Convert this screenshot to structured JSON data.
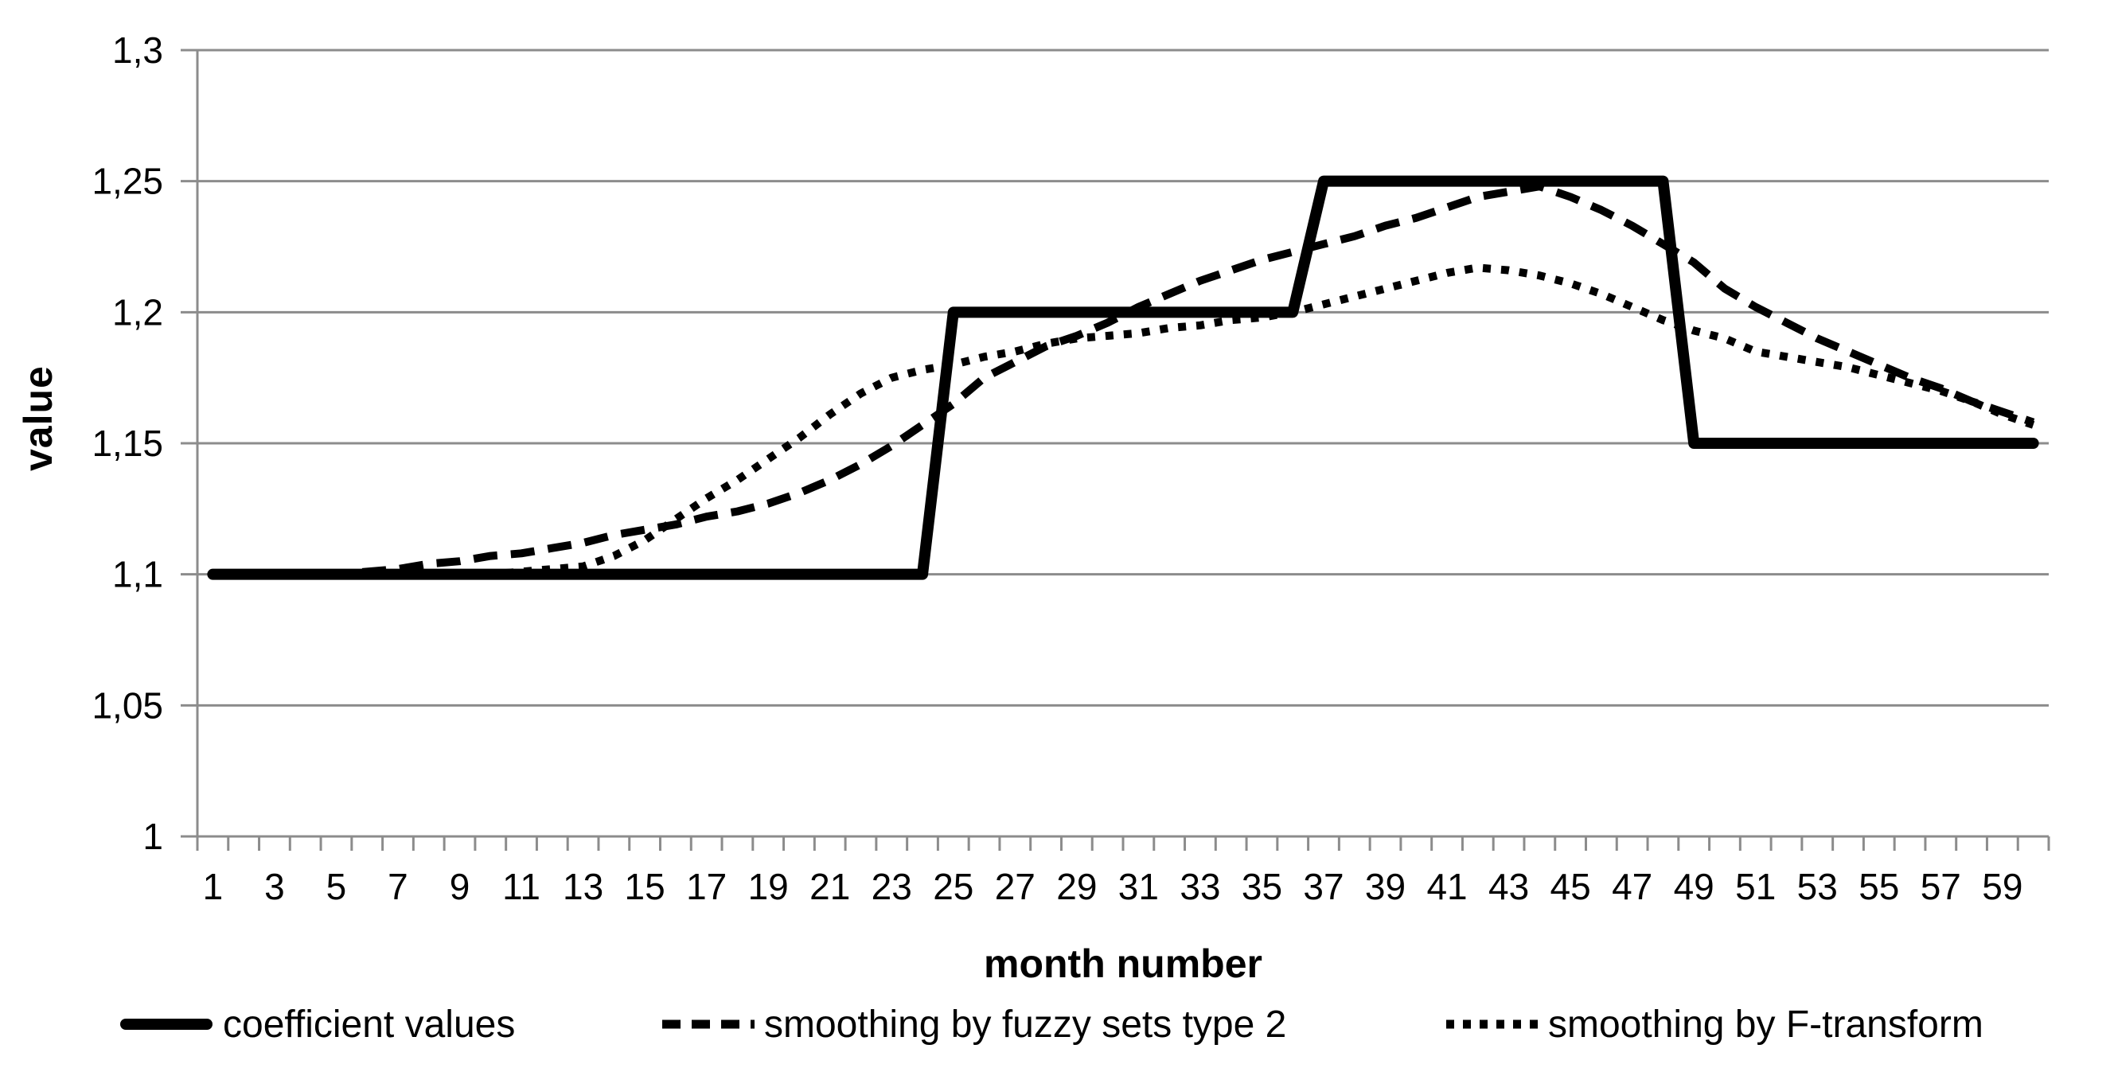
{
  "chart_data": {
    "type": "line",
    "title": "",
    "xlabel": "month number",
    "ylabel": "value",
    "x": [
      1,
      2,
      3,
      4,
      5,
      6,
      7,
      8,
      9,
      10,
      11,
      12,
      13,
      14,
      15,
      16,
      17,
      18,
      19,
      20,
      21,
      22,
      23,
      24,
      25,
      26,
      27,
      28,
      29,
      30,
      31,
      32,
      33,
      34,
      35,
      36,
      37,
      38,
      39,
      40,
      41,
      42,
      43,
      44,
      45,
      46,
      47,
      48,
      49,
      50,
      51,
      52,
      53,
      54,
      55,
      56,
      57,
      58,
      59,
      60
    ],
    "x_tick_labels": [
      "1",
      "3",
      "5",
      "7",
      "9",
      "11",
      "13",
      "15",
      "17",
      "19",
      "21",
      "23",
      "25",
      "27",
      "29",
      "31",
      "33",
      "35",
      "37",
      "39",
      "41",
      "43",
      "45",
      "47",
      "49",
      "51",
      "53",
      "55",
      "57",
      "59"
    ],
    "xlim": [
      0,
      61
    ],
    "ylim": [
      1.0,
      1.3
    ],
    "y_ticks": [
      1.0,
      1.05,
      1.1,
      1.15,
      1.2,
      1.25,
      1.3
    ],
    "y_tick_labels": [
      "1",
      "1,05",
      "1,1",
      "1,15",
      "1,2",
      "1,25",
      "1,3"
    ],
    "grid": "horizontal",
    "legend_position": "bottom",
    "series": [
      {
        "name": "coefficient values",
        "style": "solid",
        "values": [
          1.1,
          1.1,
          1.1,
          1.1,
          1.1,
          1.1,
          1.1,
          1.1,
          1.1,
          1.1,
          1.1,
          1.1,
          1.1,
          1.1,
          1.1,
          1.1,
          1.1,
          1.1,
          1.1,
          1.1,
          1.1,
          1.1,
          1.1,
          1.1,
          1.2,
          1.2,
          1.2,
          1.2,
          1.2,
          1.2,
          1.2,
          1.2,
          1.2,
          1.2,
          1.2,
          1.2,
          1.25,
          1.25,
          1.25,
          1.25,
          1.25,
          1.25,
          1.25,
          1.25,
          1.25,
          1.25,
          1.25,
          1.25,
          1.15,
          1.15,
          1.15,
          1.15,
          1.15,
          1.15,
          1.15,
          1.15,
          1.15,
          1.15,
          1.15,
          1.15
        ]
      },
      {
        "name": "smoothing by fuzzy sets type 2",
        "style": "dashed",
        "values": [
          1.1,
          1.1,
          1.1,
          1.1,
          1.1,
          1.101,
          1.102,
          1.104,
          1.105,
          1.107,
          1.108,
          1.11,
          1.112,
          1.115,
          1.117,
          1.119,
          1.122,
          1.124,
          1.127,
          1.131,
          1.136,
          1.142,
          1.149,
          1.157,
          1.165,
          1.175,
          1.181,
          1.187,
          1.191,
          1.196,
          1.202,
          1.207,
          1.212,
          1.216,
          1.22,
          1.223,
          1.226,
          1.229,
          1.233,
          1.236,
          1.24,
          1.244,
          1.246,
          1.248,
          1.244,
          1.239,
          1.233,
          1.226,
          1.219,
          1.209,
          1.202,
          1.196,
          1.19,
          1.185,
          1.18,
          1.175,
          1.171,
          1.166,
          1.162,
          1.158
        ]
      },
      {
        "name": "smoothing by F-transform",
        "style": "dotted",
        "values": [
          1.1,
          1.1,
          1.1,
          1.1,
          1.1,
          1.1,
          1.1,
          1.1,
          1.1,
          1.1,
          1.101,
          1.102,
          1.103,
          1.107,
          1.113,
          1.121,
          1.129,
          1.136,
          1.144,
          1.152,
          1.161,
          1.169,
          1.175,
          1.178,
          1.18,
          1.183,
          1.185,
          1.188,
          1.19,
          1.191,
          1.192,
          1.194,
          1.195,
          1.197,
          1.198,
          1.2,
          1.203,
          1.206,
          1.209,
          1.212,
          1.215,
          1.217,
          1.216,
          1.214,
          1.211,
          1.207,
          1.202,
          1.197,
          1.193,
          1.19,
          1.185,
          1.183,
          1.181,
          1.179,
          1.176,
          1.173,
          1.17,
          1.166,
          1.161,
          1.157
        ]
      }
    ]
  },
  "colors": {
    "series": "#000000",
    "grid": "#8c8c8c",
    "axis": "#8c8c8c",
    "text": "#000000",
    "background": "#ffffff"
  }
}
